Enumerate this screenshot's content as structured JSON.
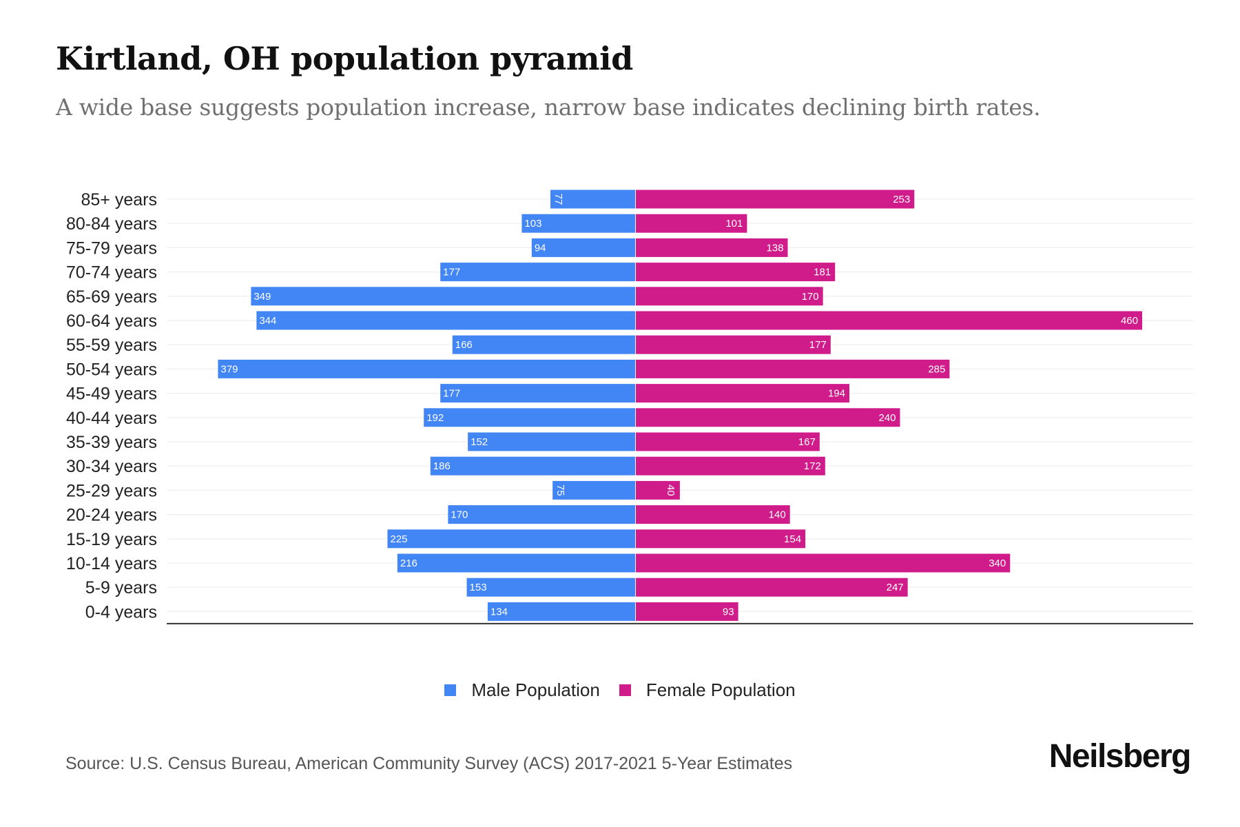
{
  "title": "Kirtland, OH population pyramid",
  "subtitle": "A wide base suggests population increase, narrow base indicates declining birth rates.",
  "source": "Source: U.S. Census Bureau, American Community Survey (ACS) 2017-2021 5-Year Estimates",
  "logo": "Neilsberg",
  "colors": {
    "male": "#4285f4",
    "female": "#d01c8b",
    "grid": "#eeeeee",
    "axis": "#333333"
  },
  "legend": [
    {
      "label": "Male Population",
      "color": "#4285f4"
    },
    {
      "label": "Female Population",
      "color": "#d01c8b"
    }
  ],
  "chart_data": {
    "type": "bar",
    "orientation": "horizontal-diverging",
    "title": "Kirtland, OH population pyramid",
    "categories": [
      "85+ years",
      "80-84 years",
      "75-79 years",
      "70-74 years",
      "65-69 years",
      "60-64 years",
      "55-59 years",
      "50-54 years",
      "45-49 years",
      "40-44 years",
      "35-39 years",
      "30-34 years",
      "25-29 years",
      "20-24 years",
      "15-19 years",
      "10-14 years",
      "5-9 years",
      "0-4 years"
    ],
    "series": [
      {
        "name": "Male Population",
        "values": [
          77,
          103,
          94,
          177,
          349,
          344,
          166,
          379,
          177,
          192,
          152,
          186,
          75,
          170,
          225,
          216,
          153,
          134
        ]
      },
      {
        "name": "Female Population",
        "values": [
          253,
          101,
          138,
          181,
          170,
          460,
          177,
          285,
          194,
          240,
          167,
          172,
          40,
          140,
          154,
          340,
          247,
          93
        ]
      }
    ],
    "xlabel": "",
    "ylabel": "",
    "grid": true,
    "legend_position": "bottom-center",
    "data_labels": true
  }
}
